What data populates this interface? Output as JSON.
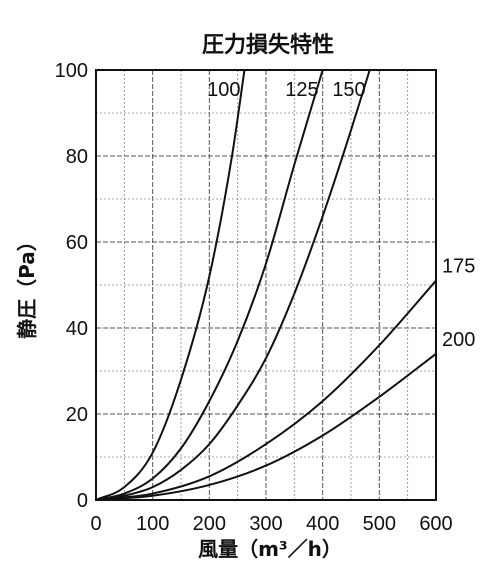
{
  "chart_data": {
    "type": "line",
    "title": "圧力損失特性",
    "xlabel": "風量（m³／h）",
    "ylabel": "静圧（Pa）",
    "xlim": [
      0,
      600
    ],
    "ylim": [
      0,
      100
    ],
    "x_ticks": [
      "0",
      "100",
      "200",
      "300",
      "400",
      "500",
      "600"
    ],
    "y_ticks": [
      "0",
      "20",
      "40",
      "60",
      "80",
      "100"
    ],
    "grid": true,
    "series": [
      {
        "name": "100",
        "points": [
          [
            0,
            0
          ],
          [
            50,
            3
          ],
          [
            100,
            11
          ],
          [
            150,
            28
          ],
          [
            200,
            52
          ],
          [
            240,
            80
          ],
          [
            262,
            100
          ]
        ]
      },
      {
        "name": "125",
        "points": [
          [
            0,
            0
          ],
          [
            50,
            1.5
          ],
          [
            100,
            5
          ],
          [
            150,
            12
          ],
          [
            200,
            23
          ],
          [
            250,
            37
          ],
          [
            300,
            55
          ],
          [
            350,
            78
          ],
          [
            400,
            100
          ]
        ]
      },
      {
        "name": "150",
        "points": [
          [
            0,
            0
          ],
          [
            50,
            1
          ],
          [
            100,
            3
          ],
          [
            150,
            7
          ],
          [
            200,
            13
          ],
          [
            250,
            22
          ],
          [
            300,
            33
          ],
          [
            350,
            48
          ],
          [
            400,
            66
          ],
          [
            450,
            86
          ],
          [
            483,
            100
          ]
        ]
      },
      {
        "name": "175",
        "points": [
          [
            0,
            0
          ],
          [
            100,
            1.5
          ],
          [
            200,
            5.5
          ],
          [
            300,
            13
          ],
          [
            400,
            23
          ],
          [
            500,
            36
          ],
          [
            600,
            51
          ]
        ]
      },
      {
        "name": "200",
        "points": [
          [
            0,
            0
          ],
          [
            100,
            1
          ],
          [
            200,
            3.5
          ],
          [
            300,
            8
          ],
          [
            400,
            15
          ],
          [
            500,
            24
          ],
          [
            600,
            34
          ]
        ]
      }
    ]
  }
}
